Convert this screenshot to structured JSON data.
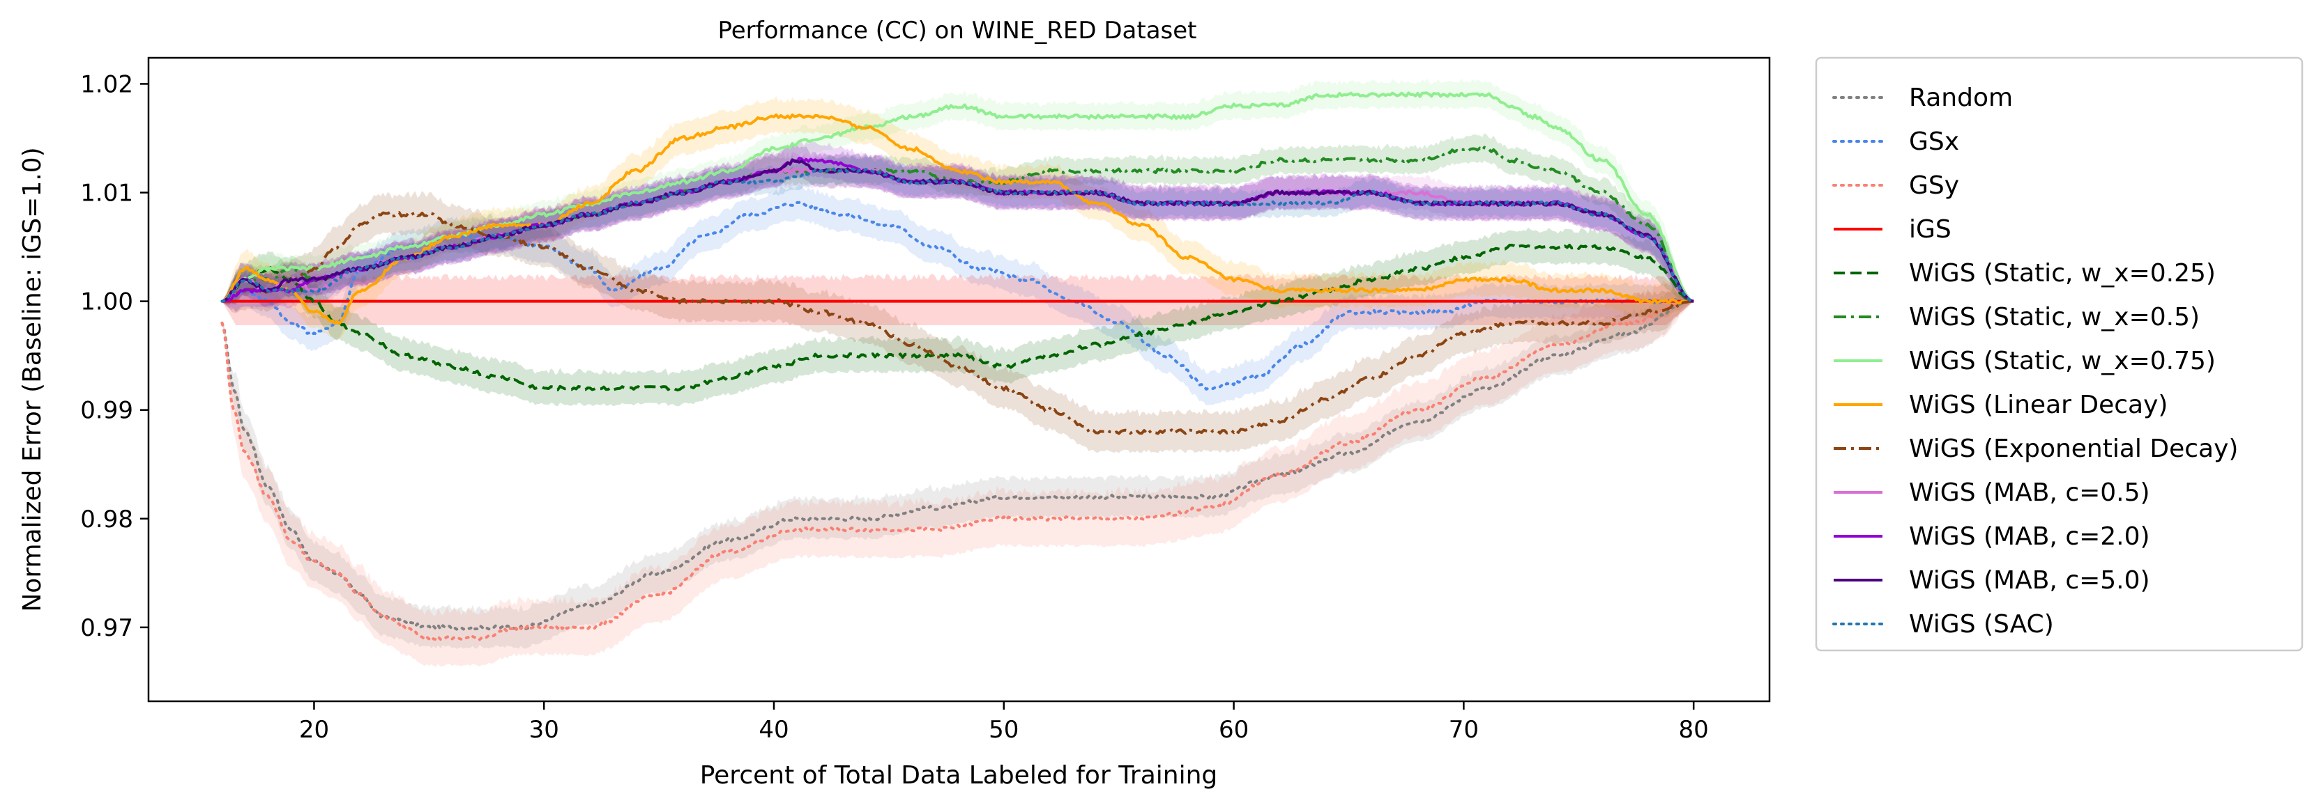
{
  "chart_data": {
    "type": "line",
    "title": "Performance (CC) on WINE_RED Dataset",
    "xlabel": "Percent of Total Data Labeled for Training",
    "ylabel": "Normalized Error (Baseline: iGS=1.0)",
    "xlim": [
      12.8,
      83.3
    ],
    "ylim": [
      0.9632,
      1.0224
    ],
    "xticks": [
      20,
      30,
      40,
      50,
      60,
      70,
      80
    ],
    "yticks": [
      0.97,
      0.98,
      0.99,
      1.0,
      1.01,
      1.02
    ],
    "xtick_labels": [
      "20",
      "30",
      "40",
      "50",
      "60",
      "70",
      "80"
    ],
    "ytick_labels": [
      "0.97",
      "0.98",
      "0.99",
      "1.00",
      "1.01",
      "1.02"
    ],
    "grid": false,
    "legend_position": "outside-right",
    "series": [
      {
        "name": "Random",
        "color": "#808080",
        "dash": "dotted",
        "band": 0.0018,
        "x": [
          16,
          16.5,
          17,
          18,
          19,
          20,
          21,
          22,
          23,
          25,
          27,
          29,
          32,
          35,
          38,
          41,
          44,
          47,
          50,
          53,
          56,
          59,
          62,
          65,
          68,
          71,
          74,
          77,
          80
        ],
        "y": [
          0.998,
          0.992,
          0.988,
          0.983,
          0.979,
          0.976,
          0.975,
          0.973,
          0.971,
          0.97,
          0.97,
          0.97,
          0.972,
          0.975,
          0.978,
          0.98,
          0.98,
          0.981,
          0.982,
          0.982,
          0.982,
          0.982,
          0.984,
          0.986,
          0.989,
          0.992,
          0.995,
          0.997,
          1.0
        ]
      },
      {
        "name": "GSx",
        "color": "#4a86e8",
        "dash": "dotted",
        "band": 0.0015,
        "x": [
          16,
          17,
          18,
          19,
          20,
          21,
          22,
          24,
          26,
          28,
          30,
          32,
          33,
          35,
          37,
          39,
          41,
          43,
          45,
          47,
          49,
          51,
          53,
          55,
          57,
          59,
          61,
          63,
          65,
          67,
          69,
          71,
          73,
          75,
          77,
          80
        ],
        "y": [
          1.0,
          1.001,
          1.0,
          0.998,
          0.997,
          0.998,
          1.003,
          1.005,
          1.006,
          1.006,
          1.005,
          1.003,
          1.001,
          1.003,
          1.006,
          1.008,
          1.009,
          1.008,
          1.007,
          1.005,
          1.003,
          1.002,
          1.0,
          0.998,
          0.995,
          0.992,
          0.993,
          0.996,
          0.999,
          0.999,
          0.999,
          1.0,
          1.0,
          1.0,
          1.0,
          1.0
        ]
      },
      {
        "name": "GSy",
        "color": "#fa8072",
        "dash": "dotted",
        "band": 0.0025,
        "x": [
          16,
          16.5,
          17,
          18,
          19,
          20,
          21,
          22,
          23,
          24,
          25,
          27,
          29,
          32,
          35,
          38,
          41,
          44,
          47,
          50,
          53,
          56,
          59,
          62,
          65,
          68,
          71,
          74,
          77,
          80
        ],
        "y": [
          0.998,
          0.99,
          0.986,
          0.982,
          0.978,
          0.976,
          0.975,
          0.973,
          0.971,
          0.97,
          0.969,
          0.969,
          0.97,
          0.97,
          0.973,
          0.977,
          0.979,
          0.979,
          0.979,
          0.98,
          0.98,
          0.98,
          0.981,
          0.984,
          0.987,
          0.99,
          0.993,
          0.996,
          0.998,
          1.0
        ]
      },
      {
        "name": "iGS",
        "color": "#ff0000",
        "dash": "solid",
        "band": 0.0022,
        "x": [
          16,
          80
        ],
        "y": [
          1.0,
          1.0
        ]
      },
      {
        "name": "WiGS (Static, w_x=0.25)",
        "color": "#006400",
        "dash": "dashed",
        "band": 0.0015,
        "x": [
          16,
          17,
          18,
          19,
          20,
          21,
          22,
          24,
          26,
          28,
          30,
          32,
          34,
          36,
          38,
          40,
          42,
          44,
          46,
          48,
          50,
          52,
          54,
          56,
          58,
          60,
          62,
          64,
          66,
          68,
          70,
          72,
          74,
          76,
          78,
          80
        ],
        "y": [
          1.0,
          1.002,
          1.003,
          1.002,
          1.0,
          0.998,
          0.997,
          0.995,
          0.994,
          0.993,
          0.992,
          0.992,
          0.992,
          0.992,
          0.993,
          0.994,
          0.995,
          0.995,
          0.995,
          0.995,
          0.994,
          0.995,
          0.996,
          0.997,
          0.998,
          0.999,
          1.0,
          1.001,
          1.002,
          1.003,
          1.004,
          1.005,
          1.005,
          1.005,
          1.004,
          1.0
        ]
      },
      {
        "name": "WiGS (Static, w_x=0.5)",
        "color": "#228b22",
        "dash": "dashdot",
        "band": 0.0012,
        "x": [
          16,
          17,
          18,
          19,
          20,
          22,
          24,
          26,
          28,
          30,
          32,
          34,
          36,
          38,
          40,
          42,
          44,
          46,
          48,
          50,
          52,
          54,
          56,
          58,
          60,
          62,
          64,
          66,
          68,
          70,
          71,
          72,
          74,
          76,
          78,
          80
        ],
        "y": [
          1.0,
          1.002,
          1.002,
          1.003,
          1.002,
          1.003,
          1.004,
          1.005,
          1.006,
          1.007,
          1.008,
          1.009,
          1.01,
          1.011,
          1.012,
          1.012,
          1.012,
          1.012,
          1.011,
          1.011,
          1.012,
          1.012,
          1.012,
          1.012,
          1.012,
          1.013,
          1.013,
          1.013,
          1.013,
          1.014,
          1.014,
          1.013,
          1.012,
          1.01,
          1.007,
          1.0
        ]
      },
      {
        "name": "WiGS (Static, w_x=0.75)",
        "color": "#90ee90",
        "dash": "solid",
        "band": 0.0012,
        "x": [
          16,
          17,
          18,
          19,
          20,
          22,
          24,
          26,
          28,
          30,
          32,
          34,
          36,
          38,
          40,
          42,
          44,
          46,
          48,
          50,
          52,
          54,
          56,
          58,
          60,
          62,
          64,
          66,
          68,
          70,
          71,
          72,
          73,
          74,
          76,
          78,
          80
        ],
        "y": [
          1.0,
          1.002,
          1.003,
          1.003,
          1.003,
          1.004,
          1.005,
          1.006,
          1.007,
          1.008,
          1.009,
          1.01,
          1.011,
          1.012,
          1.014,
          1.015,
          1.016,
          1.017,
          1.018,
          1.017,
          1.017,
          1.017,
          1.017,
          1.017,
          1.018,
          1.018,
          1.019,
          1.019,
          1.019,
          1.019,
          1.019,
          1.018,
          1.017,
          1.016,
          1.013,
          1.008,
          1.0
        ]
      },
      {
        "name": "WiGS (Linear Decay)",
        "color": "#ffa500",
        "dash": "solid",
        "band": 0.0015,
        "x": [
          16,
          17,
          18,
          19,
          20,
          21,
          22,
          24,
          26,
          28,
          30,
          32,
          34,
          36,
          38,
          40,
          41,
          42,
          44,
          46,
          48,
          50,
          52,
          54,
          56,
          58,
          60,
          62,
          64,
          66,
          68,
          70,
          72,
          74,
          76,
          78,
          80
        ],
        "y": [
          1.0,
          1.003,
          1.002,
          1.001,
          0.999,
          0.998,
          1.001,
          1.004,
          1.006,
          1.007,
          1.007,
          1.009,
          1.012,
          1.015,
          1.016,
          1.017,
          1.017,
          1.017,
          1.016,
          1.014,
          1.012,
          1.011,
          1.011,
          1.009,
          1.007,
          1.004,
          1.002,
          1.001,
          1.001,
          1.001,
          1.001,
          1.002,
          1.002,
          1.001,
          1.001,
          1.0,
          1.0
        ]
      },
      {
        "name": "WiGS (Exponential Decay)",
        "color": "#8b4513",
        "dash": "dashdot",
        "band": 0.0018,
        "x": [
          16,
          17,
          18,
          19,
          20,
          21,
          22,
          23,
          24,
          25,
          26,
          28,
          30,
          32,
          34,
          36,
          38,
          40,
          42,
          44,
          46,
          48,
          50,
          52,
          54,
          55,
          56,
          58,
          60,
          62,
          64,
          66,
          68,
          70,
          72,
          74,
          76,
          78,
          80
        ],
        "y": [
          1.0,
          1.001,
          1.001,
          1.002,
          1.003,
          1.005,
          1.007,
          1.008,
          1.008,
          1.008,
          1.007,
          1.006,
          1.005,
          1.003,
          1.001,
          1.0,
          1.0,
          1.0,
          0.999,
          0.998,
          0.996,
          0.994,
          0.992,
          0.99,
          0.988,
          0.988,
          0.988,
          0.988,
          0.988,
          0.989,
          0.991,
          0.993,
          0.995,
          0.997,
          0.998,
          0.998,
          0.998,
          0.999,
          1.0
        ]
      },
      {
        "name": "WiGS (MAB, c=0.5)",
        "color": "#da70d6",
        "dash": "solid",
        "band": 0.0015,
        "x": [
          16,
          17,
          18,
          19,
          20,
          22,
          24,
          26,
          28,
          30,
          32,
          34,
          36,
          38,
          40,
          41,
          42,
          44,
          46,
          48,
          50,
          52,
          54,
          56,
          58,
          60,
          62,
          64,
          66,
          68,
          70,
          72,
          74,
          76,
          78,
          80
        ],
        "y": [
          1.0,
          1.002,
          1.001,
          1.002,
          1.001,
          1.003,
          1.004,
          1.005,
          1.006,
          1.007,
          1.008,
          1.009,
          1.01,
          1.011,
          1.012,
          1.012,
          1.012,
          1.012,
          1.011,
          1.011,
          1.01,
          1.01,
          1.01,
          1.009,
          1.009,
          1.009,
          1.01,
          1.01,
          1.01,
          1.01,
          1.009,
          1.009,
          1.009,
          1.008,
          1.006,
          1.0
        ]
      },
      {
        "name": "WiGS (MAB, c=2.0)",
        "color": "#9400d3",
        "dash": "solid",
        "band": 0.0015,
        "x": [
          16,
          17,
          18,
          19,
          20,
          22,
          24,
          26,
          28,
          30,
          32,
          34,
          36,
          38,
          40,
          41,
          42,
          44,
          46,
          48,
          50,
          52,
          54,
          56,
          58,
          60,
          62,
          64,
          66,
          68,
          70,
          72,
          74,
          76,
          78,
          80
        ],
        "y": [
          1.0,
          1.001,
          1.001,
          1.001,
          1.002,
          1.003,
          1.004,
          1.005,
          1.006,
          1.007,
          1.008,
          1.009,
          1.01,
          1.011,
          1.012,
          1.013,
          1.013,
          1.012,
          1.011,
          1.011,
          1.01,
          1.01,
          1.01,
          1.009,
          1.009,
          1.009,
          1.01,
          1.01,
          1.01,
          1.009,
          1.009,
          1.009,
          1.009,
          1.008,
          1.006,
          1.0
        ]
      },
      {
        "name": "WiGS (MAB, c=5.0)",
        "color": "#4b0082",
        "dash": "solid",
        "band": 0.0015,
        "x": [
          16,
          17,
          18,
          19,
          20,
          22,
          24,
          26,
          28,
          30,
          32,
          34,
          36,
          38,
          40,
          41,
          42,
          44,
          46,
          48,
          50,
          52,
          54,
          56,
          58,
          60,
          62,
          64,
          66,
          68,
          70,
          72,
          74,
          76,
          78,
          80
        ],
        "y": [
          1.0,
          1.002,
          1.001,
          1.002,
          1.002,
          1.003,
          1.004,
          1.005,
          1.006,
          1.007,
          1.008,
          1.009,
          1.01,
          1.011,
          1.012,
          1.013,
          1.012,
          1.012,
          1.011,
          1.011,
          1.01,
          1.01,
          1.01,
          1.009,
          1.009,
          1.009,
          1.01,
          1.01,
          1.01,
          1.009,
          1.009,
          1.009,
          1.009,
          1.008,
          1.006,
          1.0
        ]
      },
      {
        "name": "WiGS (SAC)",
        "color": "#1f77b4",
        "dash": "dotted",
        "band": 0.0012,
        "x": [
          16,
          17,
          18,
          19,
          20,
          22,
          24,
          26,
          28,
          30,
          32,
          34,
          36,
          38,
          40,
          42,
          44,
          46,
          48,
          50,
          52,
          54,
          56,
          58,
          60,
          62,
          64,
          66,
          68,
          70,
          72,
          74,
          76,
          78,
          80
        ],
        "y": [
          1.0,
          1.002,
          1.001,
          1.001,
          1.001,
          1.003,
          1.004,
          1.005,
          1.006,
          1.007,
          1.008,
          1.009,
          1.01,
          1.011,
          1.011,
          1.012,
          1.012,
          1.011,
          1.011,
          1.01,
          1.01,
          1.01,
          1.009,
          1.009,
          1.009,
          1.009,
          1.009,
          1.01,
          1.009,
          1.009,
          1.009,
          1.009,
          1.008,
          1.006,
          1.0
        ]
      }
    ]
  }
}
